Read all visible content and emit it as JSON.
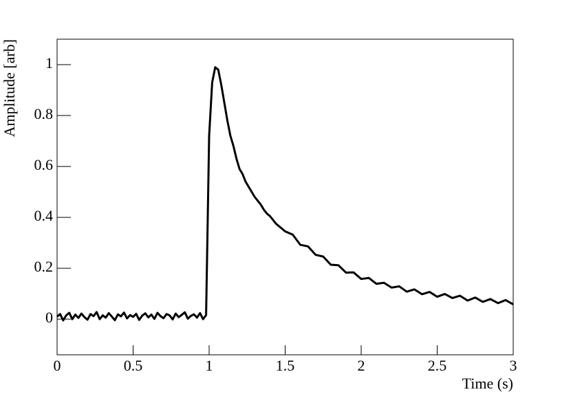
{
  "chart_data": {
    "type": "line",
    "x_label": "Time (s)",
    "y_label": "Amplitude [arb]",
    "xlim": [
      0,
      3
    ],
    "ylim": [
      -0.14,
      1.1
    ],
    "xticks": [
      0,
      0.5,
      1,
      1.5,
      2,
      2.5,
      3
    ],
    "yticks": [
      0,
      0.2,
      0.4,
      0.6,
      0.8,
      1
    ],
    "grid": false,
    "series": [
      {
        "color": "#000000",
        "x": [
          0,
          0.02,
          0.04,
          0.06,
          0.08,
          0.1,
          0.12,
          0.14,
          0.16,
          0.18,
          0.2,
          0.22,
          0.24,
          0.26,
          0.28,
          0.3,
          0.32,
          0.34,
          0.36,
          0.38,
          0.4,
          0.42,
          0.44,
          0.46,
          0.48,
          0.5,
          0.52,
          0.54,
          0.56,
          0.58,
          0.6,
          0.62,
          0.64,
          0.66,
          0.68,
          0.7,
          0.72,
          0.74,
          0.76,
          0.78,
          0.8,
          0.82,
          0.84,
          0.86,
          0.88,
          0.9,
          0.92,
          0.94,
          0.96,
          0.98,
          1.0,
          1.02,
          1.04,
          1.06,
          1.08,
          1.1,
          1.12,
          1.14,
          1.16,
          1.18,
          1.2,
          1.22,
          1.24,
          1.26,
          1.28,
          1.3,
          1.32,
          1.34,
          1.36,
          1.38,
          1.4,
          1.42,
          1.44,
          1.46,
          1.48,
          1.5,
          1.55,
          1.6,
          1.65,
          1.7,
          1.75,
          1.8,
          1.85,
          1.9,
          1.95,
          2.0,
          2.05,
          2.1,
          2.15,
          2.2,
          2.25,
          2.3,
          2.35,
          2.4,
          2.45,
          2.5,
          2.55,
          2.6,
          2.65,
          2.7,
          2.75,
          2.8,
          2.85,
          2.9,
          2.95,
          3.0
        ],
        "values": [
          0.01,
          0.02,
          -0.005,
          0.015,
          0.025,
          0.0,
          0.018,
          0.005,
          0.022,
          0.008,
          -0.002,
          0.02,
          0.012,
          0.028,
          0.0,
          0.015,
          0.006,
          0.024,
          0.01,
          -0.004,
          0.019,
          0.011,
          0.026,
          0.003,
          0.016,
          0.009,
          0.021,
          -0.003,
          0.014,
          0.023,
          0.007,
          0.018,
          0.001,
          0.025,
          0.012,
          0.004,
          0.02,
          0.015,
          -0.001,
          0.022,
          0.008,
          0.017,
          0.027,
          0.002,
          0.013,
          0.019,
          0.006,
          0.024,
          0.0,
          0.016,
          0.72,
          0.93,
          0.99,
          0.98,
          0.92,
          0.85,
          0.78,
          0.72,
          0.68,
          0.63,
          0.59,
          0.57,
          0.54,
          0.52,
          0.5,
          0.48,
          0.465,
          0.45,
          0.43,
          0.415,
          0.405,
          0.39,
          0.375,
          0.365,
          0.355,
          0.345,
          0.332,
          0.292,
          0.286,
          0.253,
          0.246,
          0.214,
          0.212,
          0.183,
          0.184,
          0.158,
          0.162,
          0.139,
          0.143,
          0.124,
          0.129,
          0.108,
          0.117,
          0.098,
          0.107,
          0.088,
          0.099,
          0.083,
          0.092,
          0.073,
          0.085,
          0.068,
          0.079,
          0.063,
          0.075,
          0.058
        ]
      }
    ]
  }
}
